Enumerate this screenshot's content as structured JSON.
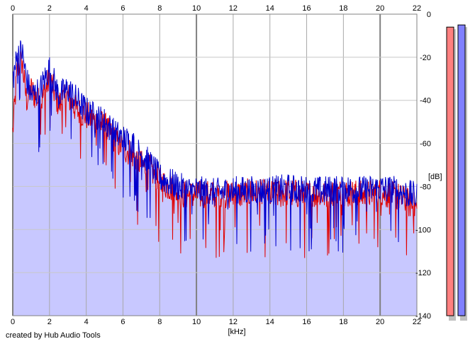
{
  "chart_data": {
    "type": "area",
    "title": "",
    "xlabel": "[kHz]",
    "ylabel": "[dB]",
    "xlim": [
      0,
      22
    ],
    "ylim": [
      -140,
      0
    ],
    "x_ticks": [
      0,
      2,
      4,
      6,
      8,
      10,
      12,
      14,
      16,
      18,
      20,
      22
    ],
    "y_ticks": [
      0,
      -20,
      -40,
      -60,
      -80,
      -100,
      -120,
      -140
    ],
    "grid": true,
    "series": [
      {
        "color": "#e00000",
        "x": [
          0,
          0.25,
          0.5,
          0.75,
          1,
          1.5,
          2,
          2.5,
          3,
          3.5,
          4,
          4.5,
          5,
          5.5,
          6,
          6.5,
          7,
          7.5,
          8,
          8.5,
          9,
          9.5,
          10,
          11,
          12,
          13,
          14,
          15,
          16,
          17,
          18,
          19,
          20,
          21,
          22
        ],
        "values": [
          -55,
          -25,
          -22,
          -40,
          -35,
          -42,
          -30,
          -42,
          -38,
          -45,
          -47,
          -50,
          -52,
          -58,
          -62,
          -65,
          -70,
          -72,
          -78,
          -80,
          -83,
          -84,
          -84,
          -84,
          -84,
          -83,
          -84,
          -83,
          -84,
          -84,
          -83,
          -84,
          -83,
          -85,
          -90
        ]
      },
      {
        "color": "#0000cc",
        "x": [
          0,
          0.25,
          0.5,
          0.75,
          1,
          1.5,
          2,
          2.5,
          3,
          3.5,
          4,
          4.5,
          5,
          5.5,
          6,
          6.5,
          7,
          7.5,
          8,
          8.5,
          9,
          9.5,
          10,
          11,
          12,
          13,
          14,
          15,
          16,
          17,
          18,
          19,
          20,
          21,
          22
        ],
        "values": [
          -30,
          -20,
          -17,
          -30,
          -38,
          -35,
          -25,
          -38,
          -35,
          -40,
          -45,
          -48,
          -50,
          -55,
          -58,
          -60,
          -65,
          -70,
          -76,
          -78,
          -80,
          -82,
          -82,
          -83,
          -82,
          -82,
          -82,
          -81,
          -82,
          -82,
          -81,
          -82,
          -81,
          -82,
          -85
        ]
      }
    ],
    "level_meters": [
      {
        "color": "#ff8080",
        "level_db": -6
      },
      {
        "color": "#8080ff",
        "level_db": -5
      }
    ]
  },
  "footer": {
    "credit": "created by Hub Audio Tools"
  },
  "colors": {
    "fill": "#c8c8ff",
    "grid_light": "#c8c8c8",
    "grid_dark": "#808080"
  }
}
